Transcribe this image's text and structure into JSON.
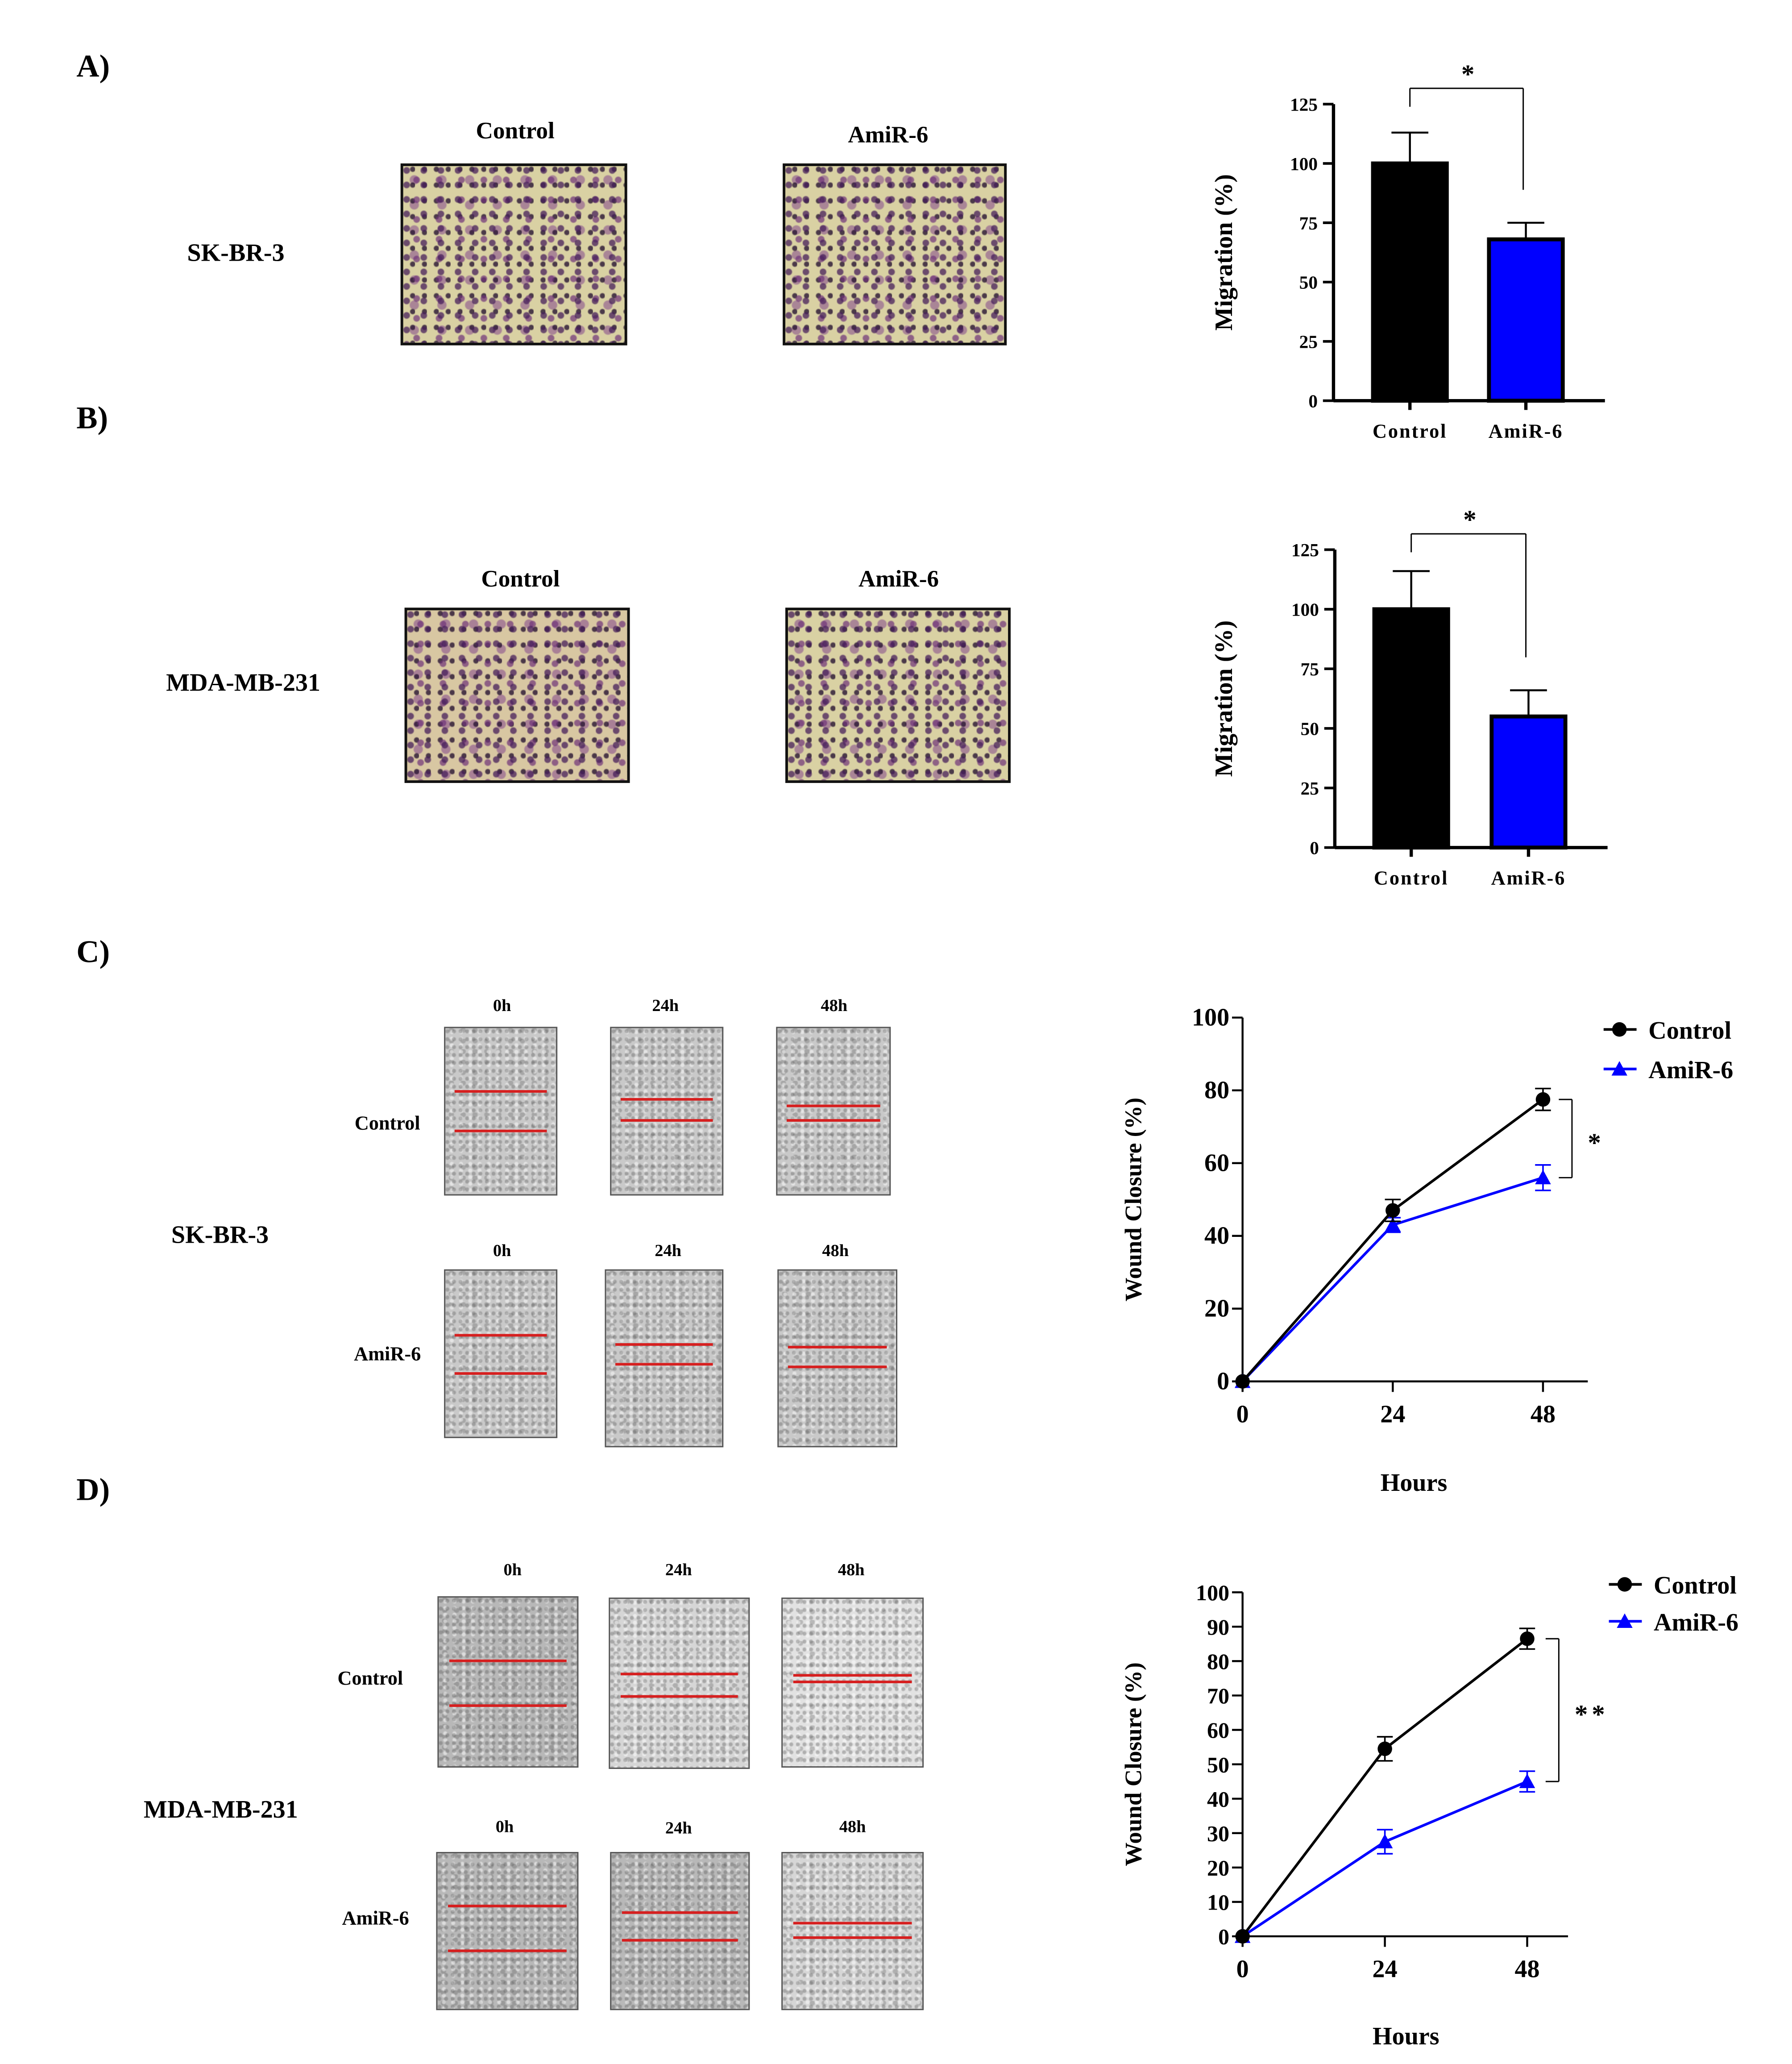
{
  "panels": {
    "a": "A)",
    "b": "B)",
    "c": "C)",
    "d": "D)"
  },
  "cell_lines": {
    "a": "SK-BR-3",
    "b": "MDA-MB-231",
    "c": "SK-BR-3",
    "d": "MDA-MB-231"
  },
  "groups": {
    "control": "Control",
    "amir": "AmiR-6"
  },
  "timepoints": [
    "0h",
    "24h",
    "48h"
  ],
  "chart_data": [
    {
      "type": "bar",
      "title": "",
      "xlabel": "",
      "ylabel": "Migration (%)",
      "categories": [
        "Control",
        "AmiR-6"
      ],
      "values": [
        100,
        68
      ],
      "errors": [
        13,
        7
      ],
      "colors": [
        "#000000",
        "#0000ff"
      ],
      "ylim": [
        0,
        125
      ],
      "yticks": [
        "0",
        "25",
        "50",
        "75",
        "100",
        "125"
      ],
      "significance": "*"
    },
    {
      "type": "bar",
      "title": "",
      "xlabel": "",
      "ylabel": "Migration (%)",
      "categories": [
        "Control",
        "AmiR-6"
      ],
      "values": [
        100,
        55
      ],
      "errors": [
        16,
        11
      ],
      "colors": [
        "#000000",
        "#0000ff"
      ],
      "ylim": [
        0,
        125
      ],
      "yticks": [
        "0",
        "25",
        "50",
        "75",
        "100",
        "125"
      ],
      "significance": "*"
    },
    {
      "type": "line",
      "xlabel": "Hours",
      "ylabel": "Wound Closure (%)",
      "x": [
        0,
        24,
        48
      ],
      "xticks": [
        "0",
        "24",
        "48"
      ],
      "ylim": [
        0,
        100
      ],
      "yticks": [
        "0",
        "20",
        "40",
        "60",
        "80",
        "100"
      ],
      "legend": "top-right",
      "series": [
        {
          "name": "Control",
          "values": [
            0,
            47,
            77.5
          ],
          "errors": [
            0,
            3,
            3
          ],
          "color": "#000000",
          "marker": "circle"
        },
        {
          "name": "AmiR-6",
          "values": [
            0,
            43,
            56
          ],
          "errors": [
            0,
            2,
            3.5
          ],
          "color": "#0000ff",
          "marker": "triangle"
        }
      ],
      "significance": "*"
    },
    {
      "type": "line",
      "xlabel": "Hours",
      "ylabel": "Wound Closure (%)",
      "x": [
        0,
        24,
        48
      ],
      "xticks": [
        "0",
        "24",
        "48"
      ],
      "ylim": [
        0,
        100
      ],
      "yticks": [
        "0",
        "10",
        "20",
        "30",
        "40",
        "50",
        "60",
        "70",
        "80",
        "90",
        "100"
      ],
      "legend": "top-right",
      "series": [
        {
          "name": "Control",
          "values": [
            0,
            54.5,
            86.5
          ],
          "errors": [
            0,
            3.5,
            3
          ],
          "color": "#000000",
          "marker": "circle"
        },
        {
          "name": "AmiR-6",
          "values": [
            0,
            27.5,
            45
          ],
          "errors": [
            0,
            3.5,
            3
          ],
          "color": "#0000ff",
          "marker": "triangle"
        }
      ],
      "significance": "**"
    }
  ]
}
